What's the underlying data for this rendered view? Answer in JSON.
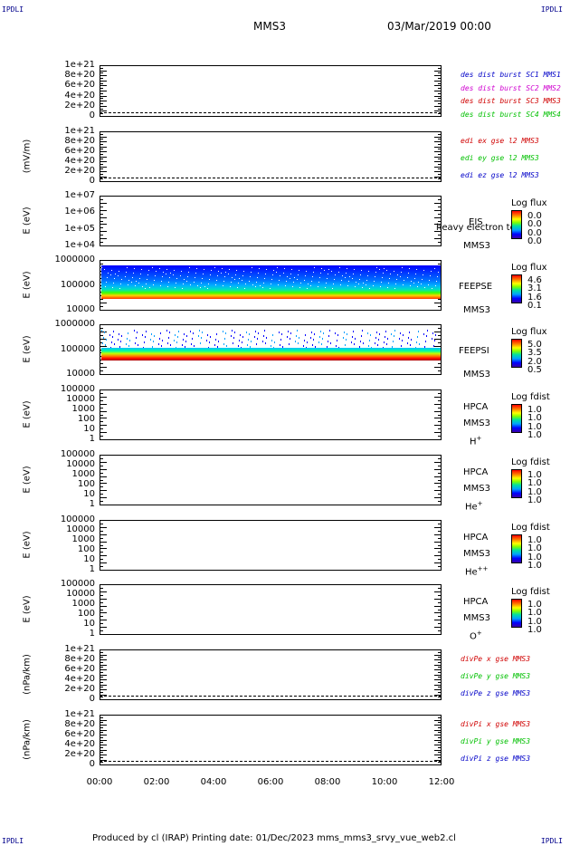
{
  "corners": {
    "tl": "IPDLI",
    "tr": "IPDLI",
    "bl": "IPDLI",
    "br": "IPDLI"
  },
  "header": {
    "spacecraft": "MMS3",
    "datetime": "03/Mar/2019 00:00"
  },
  "footer": {
    "text": "Produced by cl (IRAP)    Printing date: 01/Dec/2023    mms_mms3_srvy_vue_web2.cl"
  },
  "chart_data": [
    {
      "type": "line",
      "yticks": [
        "1e+21",
        "8e+20",
        "6e+20",
        "4e+20",
        "2e+20",
        "0"
      ],
      "ylabel": "",
      "legend": [
        {
          "text": "des dist burst SC1 MMS1",
          "color": "#0000c8"
        },
        {
          "text": "des dist burst SC2 MMS2",
          "color": "#d000d0"
        },
        {
          "text": "des dist burst SC3 MMS3",
          "color": "#d00000"
        },
        {
          "text": "des dist burst SC4 MMS4",
          "color": "#00c000"
        }
      ],
      "series": []
    },
    {
      "type": "line",
      "yticks": [
        "1e+21",
        "8e+20",
        "6e+20",
        "4e+20",
        "2e+20",
        "0"
      ],
      "ylabel": "(mV/m)",
      "legend": [
        {
          "text": "edi ex gse l2 MMS3",
          "color": "#d00000"
        },
        {
          "text": "edi ey gse l2 MMS3",
          "color": "#00c000"
        },
        {
          "text": "edi ez gse l2 MMS3",
          "color": "#0000c8"
        }
      ],
      "series": []
    },
    {
      "type": "heatmap",
      "yticks": [
        "1e+07",
        "1e+06",
        "1e+05",
        "1e+04"
      ],
      "ylabel": "E (eV)",
      "title": [
        "EIS",
        "MMS3"
      ],
      "overlay": "heavy electron to",
      "cb_label": "Log flux",
      "cb_values": [
        "0.0",
        "0.0",
        "0.0",
        "0.0"
      ]
    },
    {
      "type": "heatmap",
      "yticks": [
        "1000000",
        "100000",
        "10000"
      ],
      "ylabel": "E (eV)",
      "title": [
        "FEEPSE",
        "MMS3"
      ],
      "cb_label": "Log flux",
      "cb_values": [
        "4.6",
        "3.1",
        "1.6",
        "0.1"
      ]
    },
    {
      "type": "heatmap",
      "yticks": [
        "1000000",
        "100000",
        "10000"
      ],
      "ylabel": "E (eV)",
      "title": [
        "FEEPSI",
        "MMS3"
      ],
      "cb_label": "Log flux",
      "cb_values": [
        "5.0",
        "3.5",
        "2.0",
        "0.5"
      ]
    },
    {
      "type": "heatmap",
      "yticks": [
        "100000",
        "10000",
        "1000",
        "100",
        "10",
        "1"
      ],
      "ylabel": "E (eV)",
      "title": [
        "HPCA",
        "MMS3",
        "H"
      ],
      "sup": "+",
      "cb_label": "Log fdist",
      "cb_values": [
        "1.0",
        "1.0",
        "1.0",
        "1.0"
      ]
    },
    {
      "type": "heatmap",
      "yticks": [
        "100000",
        "10000",
        "1000",
        "100",
        "10",
        "1"
      ],
      "ylabel": "E (eV)",
      "title": [
        "HPCA",
        "MMS3",
        "He"
      ],
      "sup": "+",
      "cb_label": "Log fdist",
      "cb_values": [
        "1.0",
        "1.0",
        "1.0",
        "1.0"
      ]
    },
    {
      "type": "heatmap",
      "yticks": [
        "100000",
        "10000",
        "1000",
        "100",
        "10",
        "1"
      ],
      "ylabel": "E (eV)",
      "title": [
        "HPCA",
        "MMS3",
        "He"
      ],
      "sup": "++",
      "cb_label": "Log fdist",
      "cb_values": [
        "1.0",
        "1.0",
        "1.0",
        "1.0"
      ]
    },
    {
      "type": "heatmap",
      "yticks": [
        "100000",
        "10000",
        "1000",
        "100",
        "10",
        "1"
      ],
      "ylabel": "E (eV)",
      "title": [
        "HPCA",
        "MMS3",
        "O"
      ],
      "sup": "+",
      "cb_label": "Log fdist",
      "cb_values": [
        "1.0",
        "1.0",
        "1.0",
        "1.0"
      ]
    },
    {
      "type": "line",
      "yticks": [
        "1e+21",
        "8e+20",
        "6e+20",
        "4e+20",
        "2e+20",
        "0"
      ],
      "ylabel": "(nPa/km)",
      "legend": [
        {
          "text": "divPe x gse MMS3",
          "color": "#d00000"
        },
        {
          "text": "divPe y gse MMS3",
          "color": "#00c000"
        },
        {
          "text": "divPe z gse MMS3",
          "color": "#0000c8"
        }
      ],
      "series": []
    },
    {
      "type": "line",
      "yticks": [
        "1e+21",
        "8e+20",
        "6e+20",
        "4e+20",
        "2e+20",
        "0"
      ],
      "ylabel": "(nPa/km)",
      "legend": [
        {
          "text": "divPi x gse MMS3",
          "color": "#d00000"
        },
        {
          "text": "divPi y gse MMS3",
          "color": "#00c000"
        },
        {
          "text": "divPi z gse MMS3",
          "color": "#0000c8"
        }
      ],
      "series": []
    }
  ],
  "xaxis": {
    "ticks": [
      "00:00",
      "02:00",
      "04:00",
      "06:00",
      "08:00",
      "10:00",
      "12:00"
    ]
  }
}
